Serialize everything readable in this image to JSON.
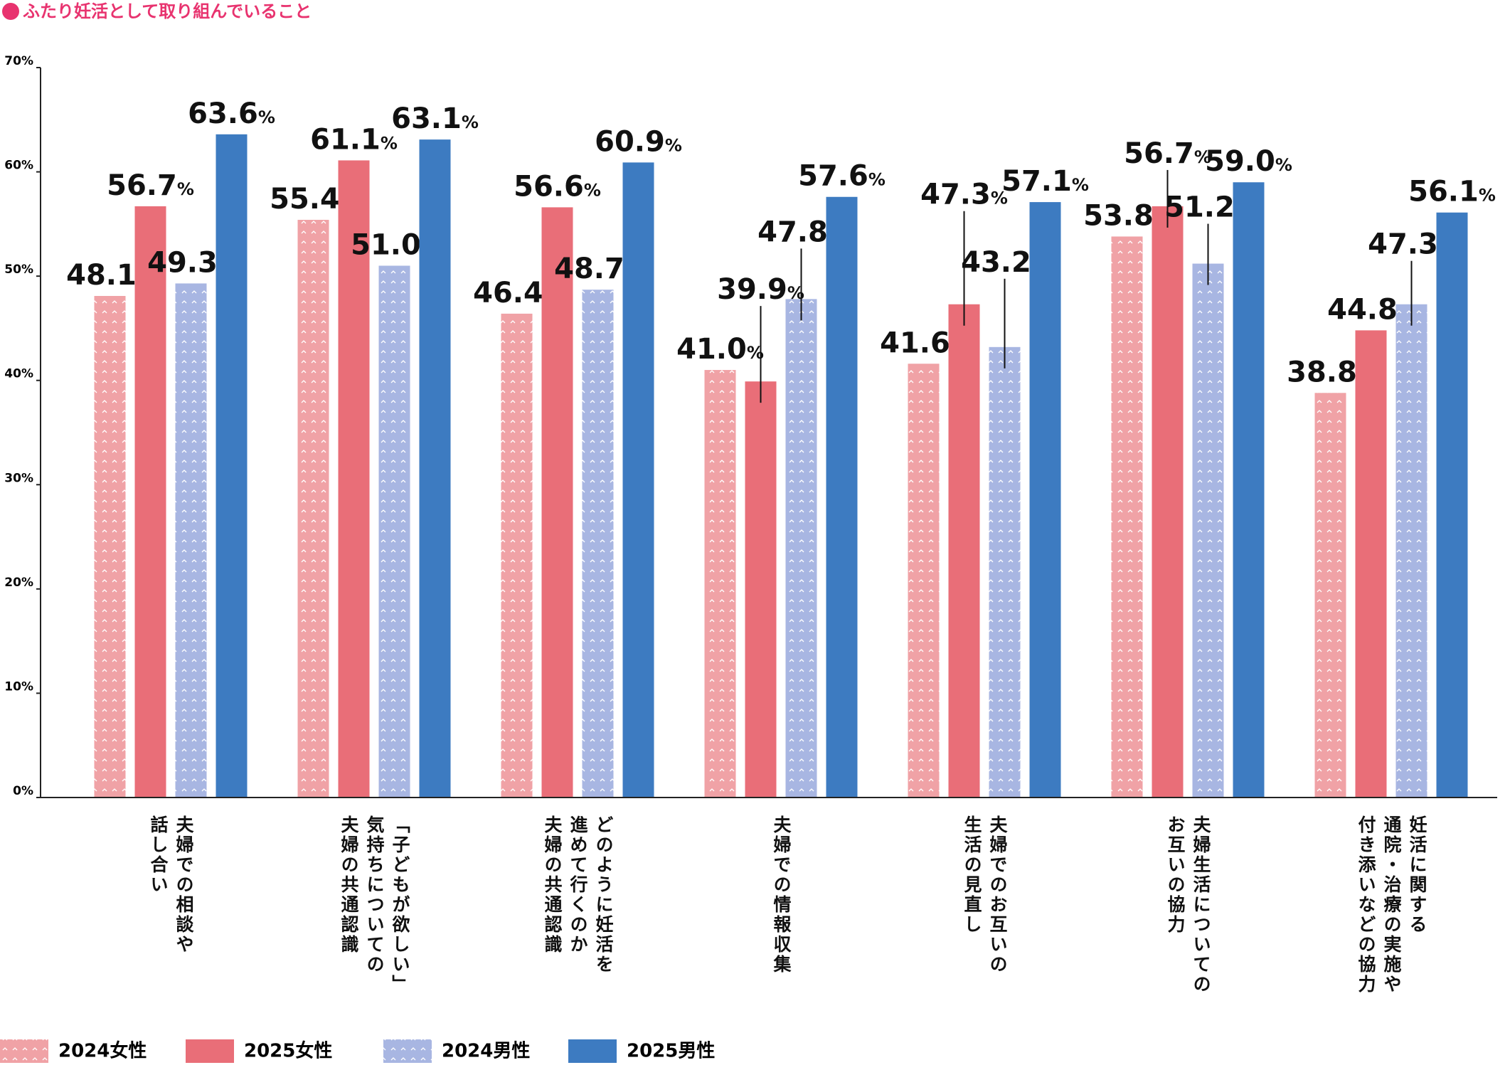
{
  "chart_data": {
    "type": "bar",
    "title": "ふたり妊活として取り組んでいること",
    "categories": [
      "夫婦での相談や\n話し合い",
      "「子どもが欲しい」\n気持ちについての\n夫婦の共通認識",
      "どのように妊活を\n進めて行くのか\n夫婦の共通認識",
      "夫婦での情報収集",
      "夫婦でのお互いの\n生活の見直し",
      "夫婦生活についての\nお互いの協力",
      "妊活に関する\n通院・治療の実施や\n付き添いなどの協力"
    ],
    "series": [
      {
        "name": "2024女性",
        "color": "#f0a2a6",
        "pattern": "chevron",
        "values": [
          48.1,
          55.4,
          46.4,
          41.0,
          41.6,
          53.8,
          38.8
        ],
        "value_labels": [
          "48.1%",
          "55.4%",
          "46.4%",
          "41.0%",
          "41.6%",
          "53.8%",
          "38.8%"
        ]
      },
      {
        "name": "2025女性",
        "color": "#e96e78",
        "values": [
          56.7,
          61.1,
          56.6,
          39.9,
          47.3,
          56.7,
          44.8
        ],
        "value_labels": [
          "56.7%",
          "61.1%",
          "56.6%",
          "39.9%",
          "47.3%",
          "56.7%",
          "44.8%"
        ]
      },
      {
        "name": "2024男性",
        "color": "#a8b6e2",
        "pattern": "chevron",
        "values": [
          49.3,
          51.0,
          48.7,
          47.8,
          43.2,
          51.2,
          47.3
        ],
        "value_labels": [
          "49.3%",
          "51.0%",
          "48.7%",
          "47.8%",
          "43.2%",
          "51.2%",
          "47.3%"
        ]
      },
      {
        "name": "2025男性",
        "color": "#3d7bc1",
        "values": [
          63.6,
          63.1,
          60.9,
          57.6,
          57.1,
          59.0,
          56.1
        ],
        "value_labels": [
          "63.6%",
          "63.1%",
          "60.9%",
          "57.6%",
          "57.1%",
          "59.0%",
          "56.1%"
        ]
      }
    ],
    "ylim": [
      0,
      70
    ],
    "yticks": [
      {
        "value": 0,
        "label": "0%"
      },
      {
        "value": 10,
        "label": "10%"
      },
      {
        "value": 20,
        "label": "20%"
      },
      {
        "value": 30,
        "label": "30%"
      },
      {
        "value": 40,
        "label": "40%"
      },
      {
        "value": 50,
        "label": "50%"
      },
      {
        "value": 60,
        "label": "60%"
      },
      {
        "value": 70,
        "label": "70%"
      }
    ],
    "grid": false,
    "legend": "bottom"
  }
}
